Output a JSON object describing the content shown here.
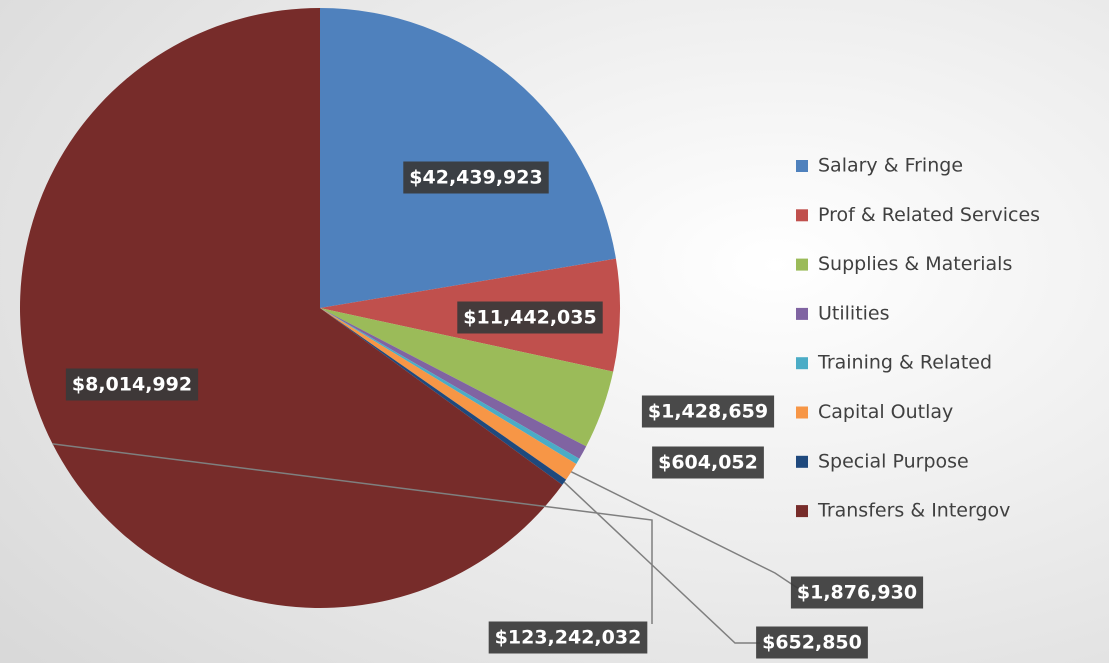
{
  "chart_data": {
    "type": "pie",
    "categories": [
      "Salary & Fringe",
      "Prof & Related Services",
      "Supplies & Materials",
      "Utilities",
      "Training & Related",
      "Capital Outlay",
      "Special Purpose",
      "Transfers & Intergov"
    ],
    "values": [
      42439923,
      11442035,
      8014992,
      1428659,
      604052,
      1876930,
      652850,
      123242032
    ],
    "value_labels": [
      "$42,439,923",
      "$11,442,035",
      "$8,014,992",
      "$1,428,659",
      "$604,052",
      "$1,876,930",
      "$652,850",
      "$123,242,032"
    ],
    "colors": [
      "#4f81bd",
      "#c0504d",
      "#9bbb59",
      "#8064a2",
      "#4bacc6",
      "#f79646",
      "#1f497d",
      "#772c2a"
    ],
    "legend": "right"
  }
}
